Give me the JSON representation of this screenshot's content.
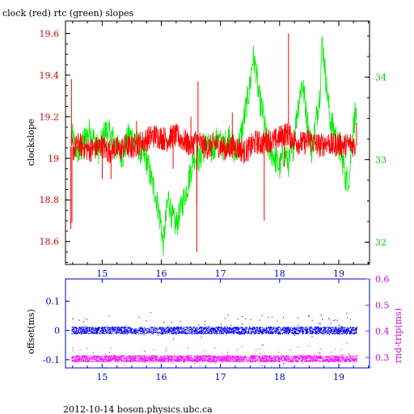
{
  "title": "clock (red) rtc (green) slopes",
  "footer": "2012-10-14  boson.physics.ubc.ca",
  "chart_data": [
    {
      "type": "line",
      "ylabel": "clockslope",
      "x_ticks": [
        15,
        16,
        17,
        18,
        19
      ],
      "xlim": [
        14.38,
        19.52
      ],
      "y_left": {
        "lim": [
          18.49,
          19.66
        ],
        "ticks": [
          18.6,
          18.8,
          19,
          19.2,
          19.4,
          19.6
        ],
        "tick_labels": [
          "18.6",
          "18.8",
          "19",
          "19.2",
          "19.4",
          "19.6"
        ],
        "color": "#dd0000"
      },
      "y_right": {
        "lim": [
          31.73,
          34.68
        ],
        "ticks": [
          32,
          33,
          34
        ],
        "tick_labels": [
          "32",
          "33",
          "34"
        ],
        "color": "#00cc00"
      },
      "series": [
        {
          "key": "clock",
          "axis": "left",
          "color": "#ff0000",
          "points": [
            [
              14.48,
              19.06
            ],
            [
              14.52,
              19.04
            ],
            [
              14.6,
              19.07
            ],
            [
              14.7,
              19.05
            ],
            [
              14.8,
              19.04
            ],
            [
              14.9,
              19.05
            ],
            [
              15.0,
              19.06
            ],
            [
              15.1,
              19.03
            ],
            [
              15.2,
              19.05
            ],
            [
              15.3,
              19.04
            ],
            [
              15.4,
              19.06
            ],
            [
              15.5,
              19.05
            ],
            [
              15.6,
              19.07
            ],
            [
              15.7,
              19.08
            ],
            [
              15.8,
              19.1
            ],
            [
              15.9,
              19.11
            ],
            [
              16.0,
              19.1
            ],
            [
              16.1,
              19.09
            ],
            [
              16.2,
              19.11
            ],
            [
              16.3,
              19.1
            ],
            [
              16.4,
              19.08
            ],
            [
              16.5,
              19.06
            ],
            [
              16.6,
              19.09
            ],
            [
              16.7,
              19.06
            ],
            [
              16.8,
              19.05
            ],
            [
              16.9,
              19.07
            ],
            [
              17.0,
              19.06
            ],
            [
              17.1,
              19.04
            ],
            [
              17.2,
              19.06
            ],
            [
              17.3,
              19.05
            ],
            [
              17.4,
              19.03
            ],
            [
              17.5,
              19.05
            ],
            [
              17.6,
              19.08
            ],
            [
              17.7,
              19.07
            ],
            [
              17.8,
              19.09
            ],
            [
              17.9,
              19.08
            ],
            [
              18.0,
              19.1
            ],
            [
              18.1,
              19.12
            ],
            [
              18.2,
              19.1
            ],
            [
              18.3,
              19.08
            ],
            [
              18.4,
              19.07
            ],
            [
              18.5,
              19.09
            ],
            [
              18.6,
              19.07
            ],
            [
              18.7,
              19.06
            ],
            [
              18.8,
              19.08
            ],
            [
              18.9,
              19.06
            ],
            [
              19.0,
              19.07
            ],
            [
              19.1,
              19.06
            ],
            [
              19.2,
              19.07
            ],
            [
              19.28,
              19.06
            ]
          ],
          "spikes": [
            [
              14.47,
              18.66
            ],
            [
              14.48,
              19.38
            ],
            [
              14.49,
              18.69
            ],
            [
              15.0,
              18.9
            ],
            [
              15.15,
              18.9
            ],
            [
              15.58,
              19.18
            ],
            [
              16.2,
              18.95
            ],
            [
              16.5,
              19.2
            ],
            [
              16.6,
              18.55
            ],
            [
              16.62,
              19.37
            ],
            [
              16.6,
              18.78
            ],
            [
              17.2,
              19.22
            ],
            [
              17.74,
              18.7
            ],
            [
              18.15,
              19.6
            ],
            [
              18.08,
              18.96
            ],
            [
              19.3,
              19.17
            ]
          ]
        },
        {
          "key": "rtc",
          "axis": "right",
          "color": "#00ee00",
          "points": [
            [
              14.48,
              33.3
            ],
            [
              14.55,
              33.15
            ],
            [
              14.62,
              33.05
            ],
            [
              14.7,
              33.25
            ],
            [
              14.8,
              33.35
            ],
            [
              14.88,
              33.2
            ],
            [
              14.95,
              33.1
            ],
            [
              15.05,
              33.35
            ],
            [
              15.15,
              33.3
            ],
            [
              15.25,
              33.15
            ],
            [
              15.35,
              33.05
            ],
            [
              15.45,
              33.3
            ],
            [
              15.55,
              33.25
            ],
            [
              15.65,
              33.1
            ],
            [
              15.75,
              33.0
            ],
            [
              15.85,
              32.7
            ],
            [
              15.9,
              32.6
            ],
            [
              15.95,
              32.4
            ],
            [
              16.0,
              32.2
            ],
            [
              16.03,
              31.95
            ],
            [
              16.08,
              32.3
            ],
            [
              16.12,
              32.55
            ],
            [
              16.18,
              32.3
            ],
            [
              16.25,
              32.2
            ],
            [
              16.35,
              32.45
            ],
            [
              16.45,
              32.7
            ],
            [
              16.55,
              33.05
            ],
            [
              16.65,
              33.0
            ],
            [
              16.75,
              33.2
            ],
            [
              16.85,
              33.1
            ],
            [
              16.95,
              33.25
            ],
            [
              17.05,
              33.15
            ],
            [
              17.15,
              33.3
            ],
            [
              17.25,
              33.05
            ],
            [
              17.35,
              33.3
            ],
            [
              17.45,
              33.7
            ],
            [
              17.5,
              33.9
            ],
            [
              17.55,
              34.25
            ],
            [
              17.6,
              34.1
            ],
            [
              17.65,
              33.75
            ],
            [
              17.72,
              33.55
            ],
            [
              17.8,
              33.15
            ],
            [
              17.9,
              33.05
            ],
            [
              18.0,
              32.9
            ],
            [
              18.08,
              33.1
            ],
            [
              18.15,
              32.95
            ],
            [
              18.22,
              33.1
            ],
            [
              18.3,
              33.6
            ],
            [
              18.38,
              33.95
            ],
            [
              18.42,
              33.75
            ],
            [
              18.5,
              33.3
            ],
            [
              18.55,
              33.1
            ],
            [
              18.6,
              33.4
            ],
            [
              18.68,
              33.8
            ],
            [
              18.72,
              34.45
            ],
            [
              18.78,
              34.0
            ],
            [
              18.85,
              33.5
            ],
            [
              18.92,
              33.35
            ],
            [
              19.0,
              33.15
            ],
            [
              19.08,
              32.95
            ],
            [
              19.12,
              32.75
            ],
            [
              19.18,
              32.8
            ],
            [
              19.22,
              33.2
            ],
            [
              19.28,
              33.6
            ],
            [
              19.3,
              33.4
            ]
          ]
        }
      ]
    },
    {
      "type": "scatter",
      "ylabel_left": "offset(ms)",
      "ylabel_right": "rnd-trip(ms)",
      "x_ticks": [
        15,
        16,
        17,
        18,
        19
      ],
      "xlim": [
        14.38,
        19.52
      ],
      "y_left": {
        "lim": [
          -0.128,
          0.176
        ],
        "ticks": [
          -0.1,
          0,
          0.1
        ],
        "tick_labels": [
          "-0.1",
          "0",
          "0.1"
        ]
      },
      "y_right": {
        "lim": [
          0.26,
          0.6
        ],
        "ticks": [
          0.3,
          0.4,
          0.5,
          0.6
        ],
        "tick_labels": [
          "0.3",
          "0.4",
          "0.5",
          "0.6"
        ]
      },
      "series": [
        {
          "key": "offset",
          "axis": "left",
          "color": "#0000ff",
          "x_range": [
            14.48,
            19.3
          ],
          "center": 0.0,
          "spread": 0.012
        },
        {
          "key": "rnd-trip",
          "axis": "right",
          "color": "#ff00ff",
          "x_range": [
            14.48,
            19.3
          ],
          "center": 0.295,
          "spread": 0.012
        }
      ],
      "axis_colors": {
        "frame": "#0000cc",
        "right": "#dd00dd"
      }
    }
  ]
}
